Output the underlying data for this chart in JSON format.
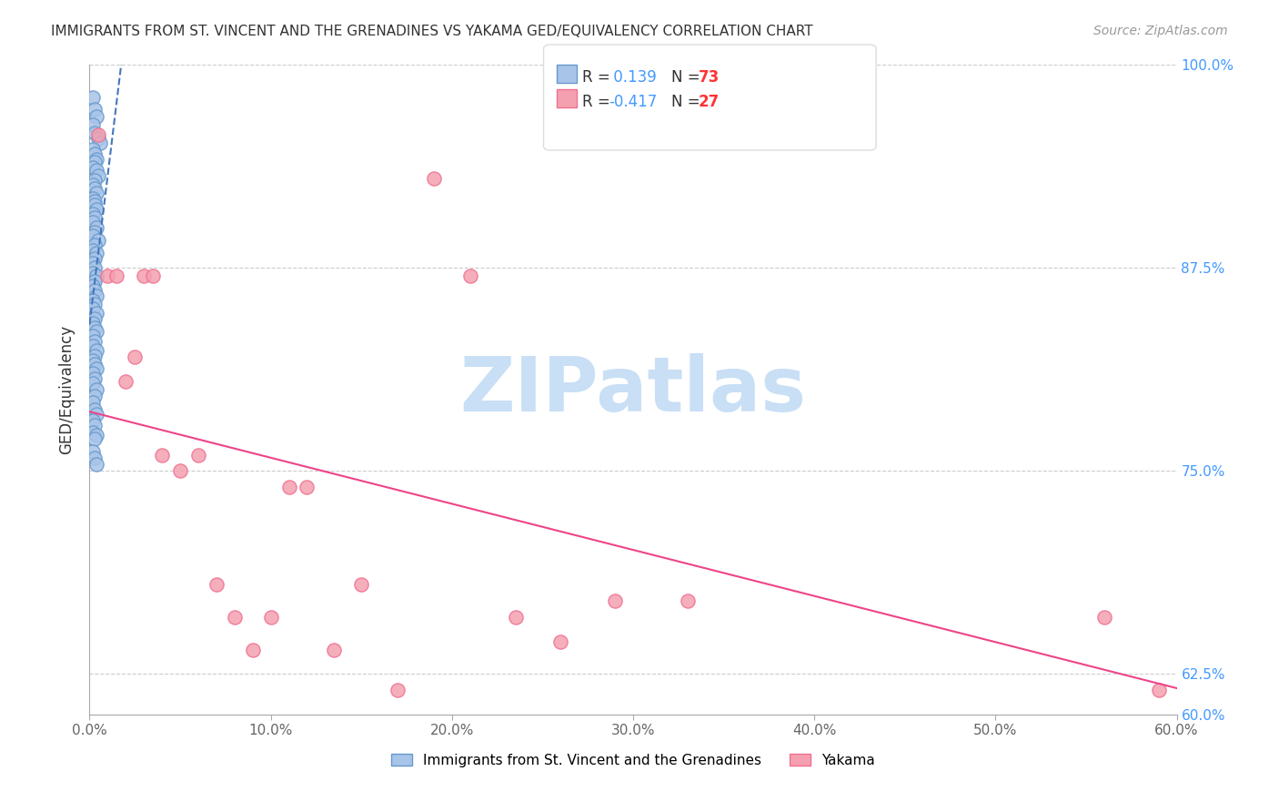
{
  "title": "IMMIGRANTS FROM ST. VINCENT AND THE GRENADINES VS YAKAMA GED/EQUIVALENCY CORRELATION CHART",
  "source": "Source: ZipAtlas.com",
  "ylabel": "GED/Equivalency",
  "xlim": [
    0.0,
    0.6
  ],
  "ylim": [
    0.6,
    1.0
  ],
  "xtick_labels": [
    "0.0%",
    "10.0%",
    "20.0%",
    "30.0%",
    "40.0%",
    "50.0%",
    "60.0%"
  ],
  "xtick_vals": [
    0.0,
    0.1,
    0.2,
    0.3,
    0.4,
    0.5,
    0.6
  ],
  "ytick_labels": [
    "60.0%",
    "62.5%",
    "75.0%",
    "87.5%",
    "100.0%"
  ],
  "ytick_vals": [
    0.6,
    0.625,
    0.75,
    0.875,
    1.0
  ],
  "blue_R": 0.139,
  "blue_N": 73,
  "pink_R": -0.417,
  "pink_N": 27,
  "blue_label": "Immigrants from St. Vincent and the Grenadines",
  "pink_label": "Yakama",
  "blue_color": "#a8c4e8",
  "pink_color": "#f4a0b0",
  "blue_edge": "#6699cc",
  "pink_edge": "#f07090",
  "blue_line_color": "#4477bb",
  "pink_line_color": "#ee4488",
  "watermark": "ZIPatlas",
  "watermark_color": "#c8dff5",
  "blue_x": [
    0.002,
    0.003,
    0.004,
    0.002,
    0.003,
    0.005,
    0.006,
    0.002,
    0.003,
    0.004,
    0.003,
    0.002,
    0.004,
    0.005,
    0.003,
    0.002,
    0.003,
    0.004,
    0.002,
    0.003,
    0.003,
    0.004,
    0.002,
    0.003,
    0.002,
    0.004,
    0.003,
    0.002,
    0.005,
    0.003,
    0.002,
    0.004,
    0.003,
    0.002,
    0.003,
    0.002,
    0.004,
    0.003,
    0.002,
    0.003,
    0.004,
    0.002,
    0.003,
    0.002,
    0.004,
    0.003,
    0.002,
    0.003,
    0.004,
    0.002,
    0.003,
    0.002,
    0.004,
    0.003,
    0.002,
    0.003,
    0.004,
    0.002,
    0.003,
    0.002,
    0.004,
    0.003,
    0.002,
    0.003,
    0.004,
    0.002,
    0.003,
    0.002,
    0.004,
    0.003,
    0.002,
    0.003,
    0.004
  ],
  "blue_y": [
    0.98,
    0.973,
    0.968,
    0.963,
    0.958,
    0.955,
    0.952,
    0.948,
    0.945,
    0.942,
    0.94,
    0.937,
    0.935,
    0.932,
    0.929,
    0.926,
    0.924,
    0.921,
    0.918,
    0.916,
    0.914,
    0.911,
    0.908,
    0.906,
    0.903,
    0.9,
    0.897,
    0.895,
    0.892,
    0.889,
    0.886,
    0.884,
    0.881,
    0.878,
    0.875,
    0.872,
    0.87,
    0.867,
    0.864,
    0.861,
    0.858,
    0.855,
    0.853,
    0.85,
    0.847,
    0.844,
    0.841,
    0.838,
    0.836,
    0.833,
    0.83,
    0.827,
    0.824,
    0.821,
    0.818,
    0.816,
    0.813,
    0.81,
    0.807,
    0.804,
    0.8,
    0.796,
    0.792,
    0.788,
    0.785,
    0.781,
    0.778,
    0.774,
    0.772,
    0.77,
    0.762,
    0.758,
    0.754
  ],
  "pink_x": [
    0.005,
    0.01,
    0.015,
    0.02,
    0.025,
    0.03,
    0.035,
    0.04,
    0.05,
    0.06,
    0.07,
    0.08,
    0.09,
    0.1,
    0.11,
    0.12,
    0.135,
    0.15,
    0.17,
    0.19,
    0.21,
    0.235,
    0.26,
    0.29,
    0.33,
    0.56,
    0.59
  ],
  "pink_y": [
    0.957,
    0.87,
    0.87,
    0.805,
    0.82,
    0.87,
    0.87,
    0.76,
    0.75,
    0.76,
    0.68,
    0.66,
    0.64,
    0.66,
    0.74,
    0.74,
    0.64,
    0.68,
    0.615,
    0.93,
    0.87,
    0.66,
    0.645,
    0.67,
    0.67,
    0.66,
    0.615
  ]
}
